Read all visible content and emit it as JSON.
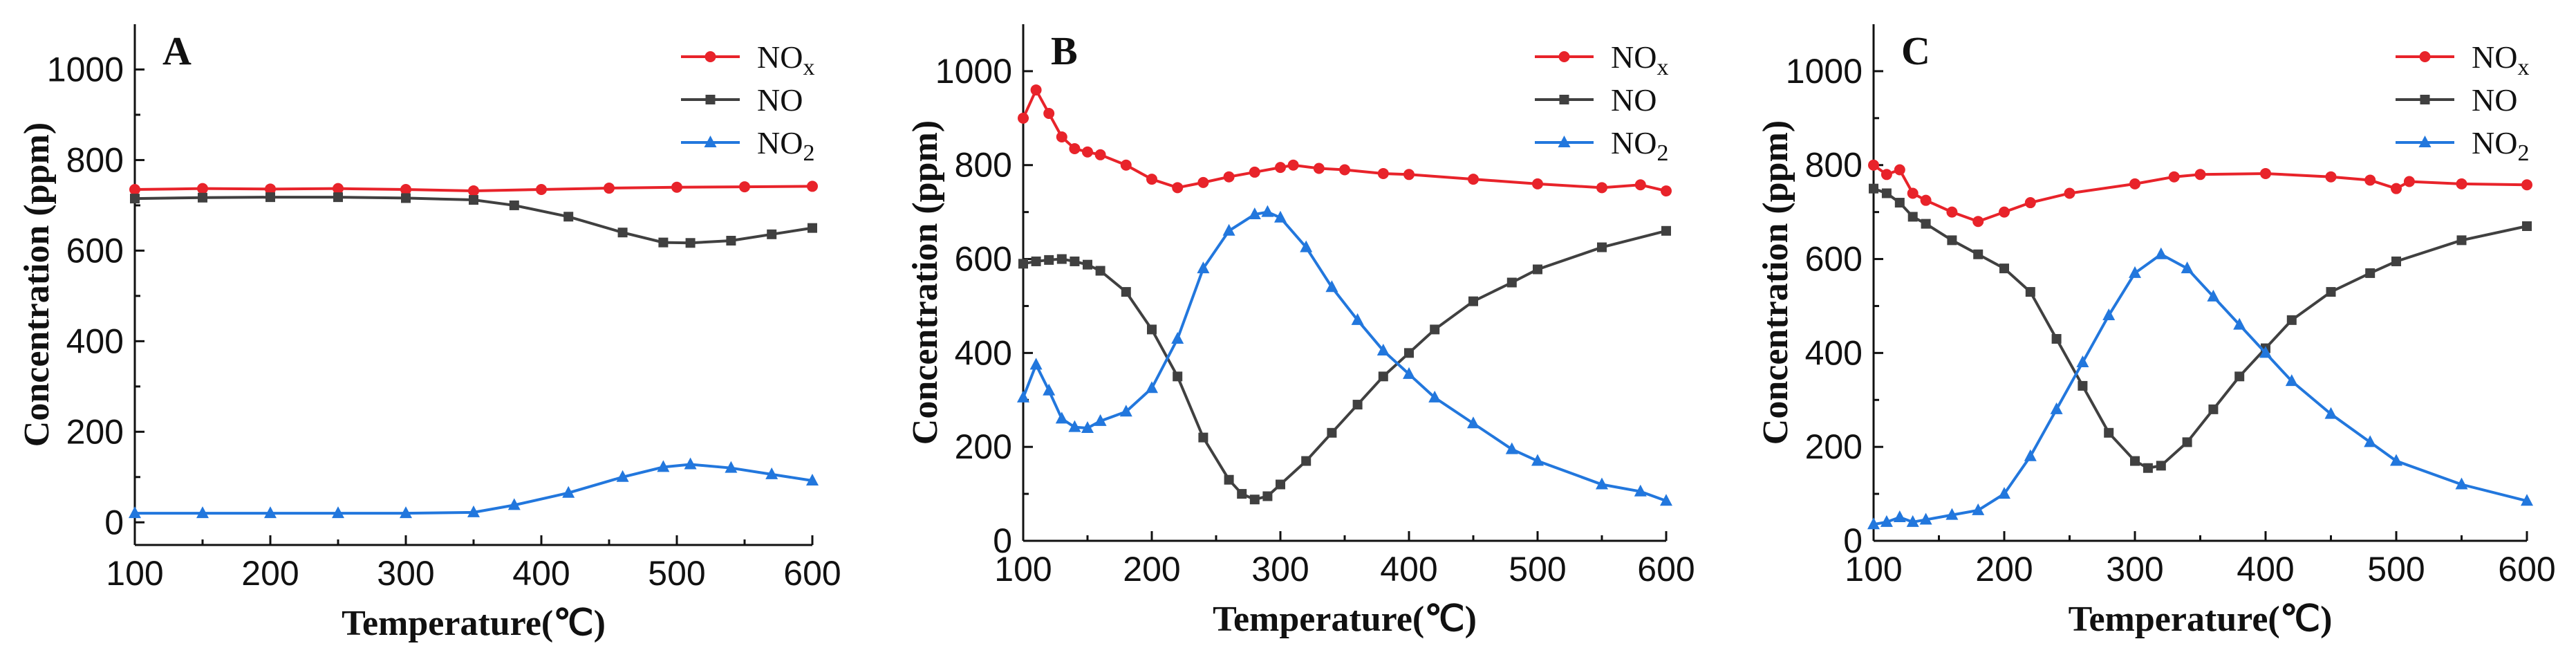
{
  "colors": {
    "NOx": "#e8232a",
    "NO": "#404040",
    "NO2": "#2277dd"
  },
  "chart_data": [
    {
      "type": "line",
      "panel": "A",
      "xlabel": "Temperature(℃)",
      "ylabel": "Concentration (ppm)",
      "xlim": [
        100,
        600
      ],
      "ylim": [
        -50,
        1100
      ],
      "xticks": [
        100,
        200,
        300,
        400,
        500,
        600
      ],
      "yticks": [
        0,
        200,
        400,
        600,
        800,
        1000
      ],
      "legend_position": "top-right",
      "series": [
        {
          "key": "NOx",
          "name": "NO",
          "subscript": "x",
          "marker": "circle",
          "x": [
            100,
            150,
            200,
            250,
            300,
            350,
            400,
            450,
            500,
            550,
            600
          ],
          "y": [
            735,
            737,
            736,
            737,
            735,
            732,
            735,
            738,
            740,
            741,
            742
          ]
        },
        {
          "key": "NO",
          "name": "NO",
          "subscript": "",
          "marker": "square",
          "x": [
            100,
            150,
            200,
            250,
            300,
            350,
            380,
            420,
            460,
            490,
            510,
            540,
            570,
            600
          ],
          "y": [
            715,
            717,
            718,
            718,
            716,
            712,
            700,
            675,
            640,
            618,
            617,
            622,
            636,
            650
          ]
        },
        {
          "key": "NO2",
          "name": "NO",
          "subscript": "2",
          "marker": "triangle",
          "x": [
            100,
            150,
            200,
            250,
            300,
            350,
            380,
            420,
            460,
            490,
            510,
            540,
            570,
            600
          ],
          "y": [
            20,
            20,
            20,
            20,
            20,
            22,
            38,
            65,
            100,
            122,
            128,
            120,
            106,
            92
          ]
        }
      ]
    },
    {
      "type": "line",
      "panel": "B",
      "xlabel": "Temperature(℃)",
      "ylabel": "Concentration (ppm)",
      "xlim": [
        100,
        600
      ],
      "ylim": [
        0,
        1100
      ],
      "xticks": [
        100,
        200,
        300,
        400,
        500,
        600
      ],
      "yticks": [
        0,
        200,
        400,
        600,
        800,
        1000
      ],
      "legend_position": "top-right",
      "series": [
        {
          "key": "NOx",
          "name": "NO",
          "subscript": "x",
          "marker": "circle",
          "x": [
            100,
            110,
            120,
            130,
            140,
            150,
            160,
            180,
            200,
            220,
            240,
            260,
            280,
            300,
            310,
            330,
            350,
            380,
            400,
            450,
            500,
            550,
            580,
            600
          ],
          "y": [
            900,
            960,
            910,
            860,
            835,
            828,
            822,
            800,
            770,
            752,
            763,
            775,
            785,
            795,
            800,
            793,
            790,
            782,
            780,
            770,
            760,
            752,
            758,
            745
          ]
        },
        {
          "key": "NO",
          "name": "NO",
          "subscript": "",
          "marker": "square",
          "x": [
            100,
            110,
            120,
            130,
            140,
            150,
            160,
            180,
            200,
            220,
            240,
            260,
            270,
            280,
            290,
            300,
            320,
            340,
            360,
            380,
            400,
            420,
            450,
            480,
            500,
            550,
            600
          ],
          "y": [
            590,
            595,
            598,
            600,
            595,
            588,
            575,
            530,
            450,
            350,
            220,
            130,
            100,
            88,
            95,
            120,
            170,
            230,
            290,
            350,
            400,
            450,
            510,
            550,
            578,
            625,
            660
          ]
        },
        {
          "key": "NO2",
          "name": "NO",
          "subscript": "2",
          "marker": "triangle",
          "x": [
            100,
            110,
            120,
            130,
            140,
            150,
            160,
            180,
            200,
            220,
            240,
            260,
            280,
            290,
            300,
            320,
            340,
            360,
            380,
            400,
            420,
            450,
            480,
            500,
            550,
            580,
            600
          ],
          "y": [
            305,
            375,
            320,
            260,
            242,
            240,
            255,
            275,
            325,
            430,
            580,
            660,
            695,
            700,
            688,
            625,
            540,
            470,
            405,
            355,
            305,
            250,
            195,
            170,
            120,
            105,
            85
          ]
        }
      ]
    },
    {
      "type": "line",
      "panel": "C",
      "xlabel": "Temperature(℃)",
      "ylabel": "Concentration (ppm)",
      "xlim": [
        100,
        600
      ],
      "ylim": [
        0,
        1100
      ],
      "xticks": [
        100,
        200,
        300,
        400,
        500,
        600
      ],
      "yticks": [
        0,
        200,
        400,
        600,
        800,
        1000
      ],
      "legend_position": "top-right",
      "series": [
        {
          "key": "NOx",
          "name": "NO",
          "subscript": "x",
          "marker": "circle",
          "x": [
            100,
            110,
            120,
            130,
            140,
            160,
            180,
            200,
            220,
            250,
            300,
            330,
            350,
            400,
            450,
            480,
            500,
            510,
            550,
            600
          ],
          "y": [
            800,
            780,
            790,
            740,
            725,
            700,
            680,
            700,
            720,
            740,
            760,
            775,
            780,
            782,
            775,
            768,
            750,
            765,
            760,
            758
          ]
        },
        {
          "key": "NO",
          "name": "NO",
          "subscript": "",
          "marker": "square",
          "x": [
            100,
            110,
            120,
            130,
            140,
            160,
            180,
            200,
            220,
            240,
            260,
            280,
            300,
            310,
            320,
            340,
            360,
            380,
            400,
            420,
            450,
            480,
            500,
            550,
            600
          ],
          "y": [
            750,
            740,
            720,
            690,
            675,
            640,
            610,
            580,
            530,
            430,
            330,
            230,
            170,
            155,
            160,
            210,
            280,
            350,
            410,
            470,
            530,
            570,
            595,
            640,
            670
          ]
        },
        {
          "key": "NO2",
          "name": "NO",
          "subscript": "2",
          "marker": "triangle",
          "x": [
            100,
            110,
            120,
            130,
            140,
            160,
            180,
            200,
            220,
            240,
            260,
            280,
            300,
            320,
            340,
            360,
            380,
            400,
            420,
            450,
            480,
            500,
            550,
            600
          ],
          "y": [
            35,
            40,
            50,
            40,
            45,
            55,
            65,
            100,
            180,
            280,
            380,
            480,
            570,
            610,
            580,
            520,
            460,
            400,
            340,
            270,
            210,
            170,
            120,
            85
          ]
        }
      ]
    }
  ]
}
